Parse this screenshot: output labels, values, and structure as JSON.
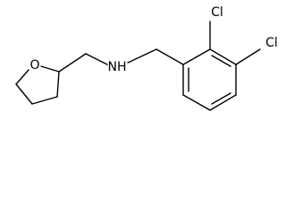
{
  "atoms": [
    {
      "label": "O"
    },
    {
      "label": "NH"
    },
    {
      "label": "Cl"
    },
    {
      "label": "Cl"
    }
  ]
}
